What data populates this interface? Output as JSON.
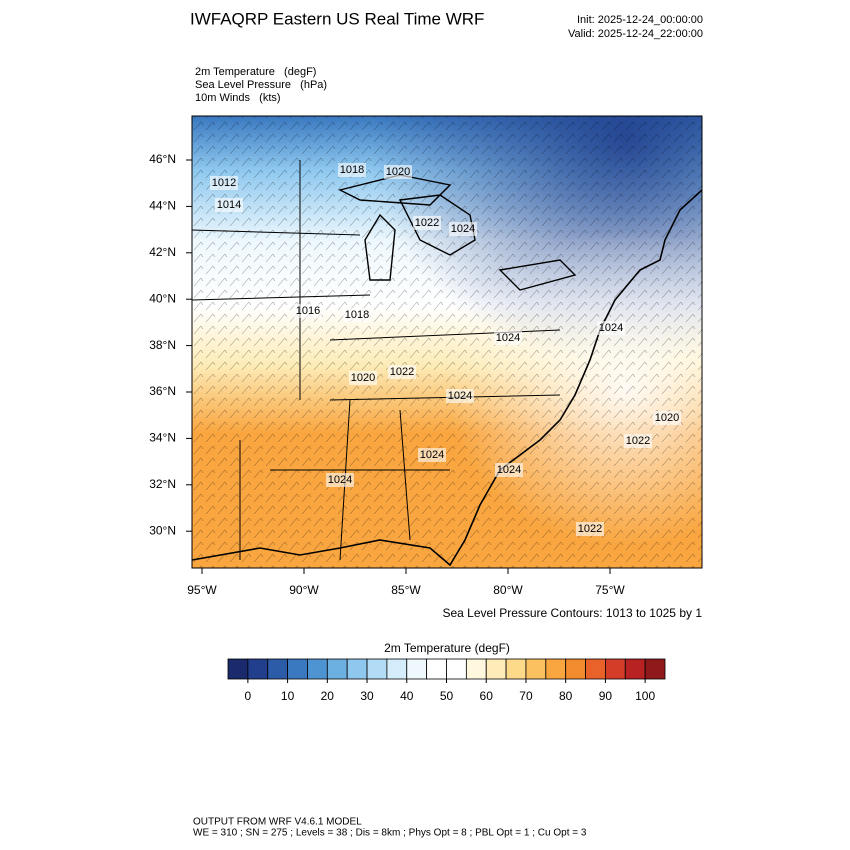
{
  "header": {
    "title": "IWFAQRP Eastern US Real Time WRF",
    "init": "Init: 2025-12-24_00:00:00",
    "valid": "Valid: 2025-12-24_22:00:00"
  },
  "fields": [
    "2m Temperature   (degF)",
    "Sea Level Pressure   (hPa)",
    "10m Winds   (kts)"
  ],
  "map": {
    "lat_ticks": [
      {
        "value": 46,
        "label": "46°N"
      },
      {
        "value": 44,
        "label": "44°N"
      },
      {
        "value": 42,
        "label": "42°N"
      },
      {
        "value": 40,
        "label": "40°N"
      },
      {
        "value": 38,
        "label": "38°N"
      },
      {
        "value": 36,
        "label": "36°N"
      },
      {
        "value": 34,
        "label": "34°N"
      },
      {
        "value": 32,
        "label": "32°N"
      },
      {
        "value": 30,
        "label": "30°N"
      }
    ],
    "lon_ticks": [
      {
        "value": -95,
        "label": "95°W"
      },
      {
        "value": -90,
        "label": "90°W"
      },
      {
        "value": -85,
        "label": "85°W"
      },
      {
        "value": -80,
        "label": "80°W"
      },
      {
        "value": -75,
        "label": "75°W"
      }
    ],
    "contour_labels": [
      "1016",
      "1018",
      "1020",
      "1022",
      "1024",
      "1024",
      "1024",
      "1024",
      "1022",
      "1022",
      "1020",
      "1024",
      "1024",
      "1024",
      "1022",
      "1020",
      "1018",
      "1014",
      "1012"
    ],
    "contour_note": "Sea Level Pressure Contours: 1013 to 1025 by 1"
  },
  "colorbar": {
    "title": "2m Temperature  (degF)",
    "colors": [
      "#1a2a6c",
      "#213f8c",
      "#2c5ba8",
      "#3a78c0",
      "#4f94d2",
      "#6cb0e2",
      "#8ec8ef",
      "#b2dcf6",
      "#d5edfa",
      "#eef8fd",
      "#ffffff",
      "#ffffff",
      "#fff8df",
      "#fdecb8",
      "#fdd98a",
      "#fbc060",
      "#f9a640",
      "#f28a2e",
      "#e8622a",
      "#d43d27",
      "#b92223",
      "#8f1a1c"
    ],
    "ticks": [
      0,
      10,
      20,
      30,
      40,
      50,
      60,
      70,
      80,
      90,
      100
    ]
  },
  "footer": {
    "line1": "OUTPUT FROM WRF V4.6.1 MODEL",
    "line2": "WE = 310 ; SN = 275 ; Levels = 38 ; Dis = 8km ; Phys Opt = 8 ; PBL Opt = 1 ; Cu Opt = 3"
  }
}
